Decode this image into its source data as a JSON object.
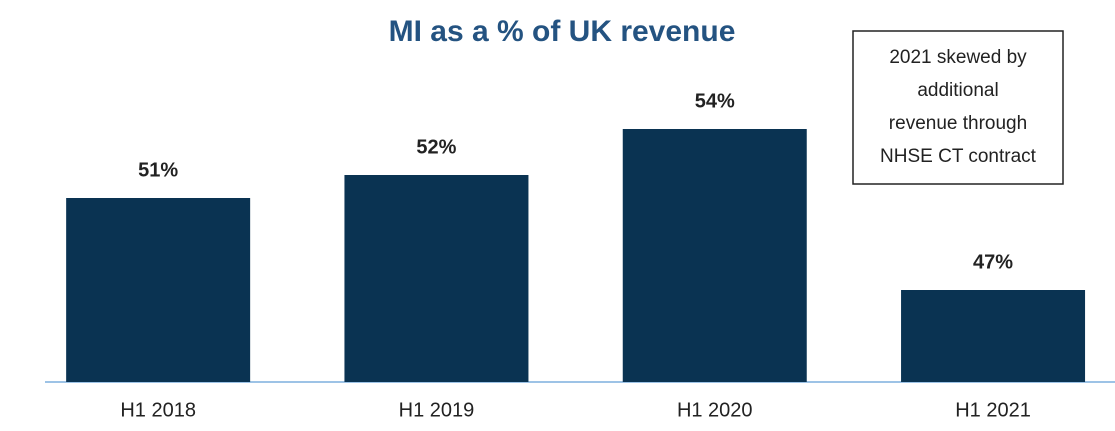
{
  "chart_data": {
    "type": "bar",
    "title": "MI as a % of UK revenue",
    "categories": [
      "H1 2018",
      "H1 2019",
      "H1 2020",
      "H1 2021"
    ],
    "values": [
      51,
      52,
      54,
      47
    ],
    "value_labels": [
      "51%",
      "52%",
      "54%",
      "47%"
    ],
    "color": "#0a3352",
    "ylim": [
      43,
      55
    ],
    "annotation": [
      "2021 skewed by",
      "additional",
      "revenue through",
      "NHSE CT contract"
    ]
  }
}
